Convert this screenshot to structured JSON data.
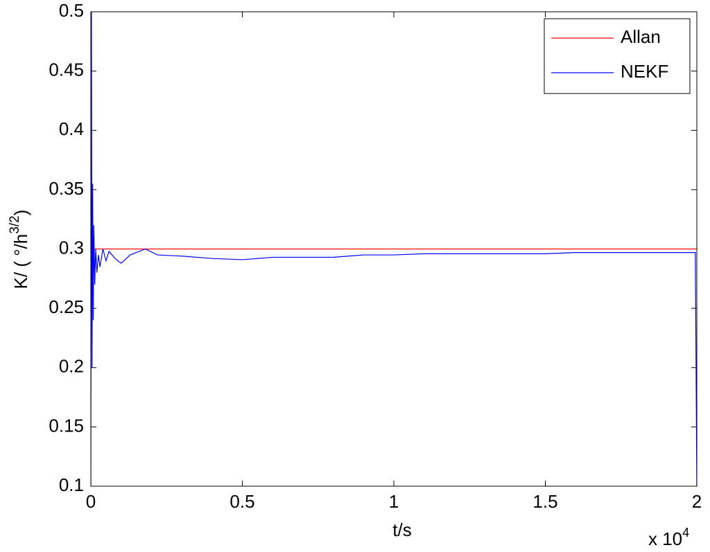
{
  "chart_data": {
    "type": "line",
    "x_label": "t/s",
    "x_multiplier": "x 10",
    "x_multiplier_exponent": "4",
    "y_label": [
      "K/ ( °/h",
      "3/2",
      ")"
    ],
    "x": [
      0,
      0.002,
      0.004,
      0.006,
      0.008,
      0.01,
      0.013,
      0.016,
      0.02,
      0.025,
      0.03,
      0.04,
      0.05,
      0.06,
      0.08,
      0.1,
      0.13,
      0.18,
      0.22,
      0.3,
      0.4,
      0.5,
      0.6,
      0.7,
      0.8,
      0.9,
      1.0,
      1.1,
      1.2,
      1.3,
      1.4,
      1.5,
      1.6,
      1.7,
      1.8,
      1.9,
      1.995,
      2.0
    ],
    "series": [
      {
        "name": "Allan",
        "color": "#ff0000",
        "values": [
          0.3,
          0.3,
          0.3,
          0.3,
          0.3,
          0.3,
          0.3,
          0.3,
          0.3,
          0.3,
          0.3,
          0.3,
          0.3,
          0.3,
          0.3,
          0.3,
          0.3,
          0.3,
          0.3,
          0.3,
          0.3,
          0.3,
          0.3,
          0.3,
          0.3,
          0.3,
          0.3,
          0.3,
          0.3,
          0.3,
          0.3,
          0.3,
          0.3,
          0.3,
          0.3,
          0.3,
          0.3,
          0.3
        ]
      },
      {
        "name": "NEKF",
        "color": "#0000ff",
        "values": [
          0.1,
          0.5,
          0.2,
          0.355,
          0.24,
          0.32,
          0.27,
          0.3,
          0.28,
          0.295,
          0.285,
          0.3,
          0.29,
          0.298,
          0.292,
          0.288,
          0.295,
          0.3,
          0.295,
          0.294,
          0.292,
          0.291,
          0.293,
          0.293,
          0.293,
          0.295,
          0.295,
          0.296,
          0.296,
          0.296,
          0.296,
          0.296,
          0.297,
          0.297,
          0.297,
          0.297,
          0.297,
          0.1
        ]
      }
    ],
    "xlim": [
      0,
      2
    ],
    "xticks": [
      0,
      0.5,
      1,
      1.5,
      2
    ],
    "ylim": [
      0.1,
      0.5
    ],
    "yticks": [
      0.1,
      0.15,
      0.2,
      0.25,
      0.3,
      0.35,
      0.4,
      0.45,
      0.5
    ],
    "grid": false,
    "legend": "upper-right"
  }
}
